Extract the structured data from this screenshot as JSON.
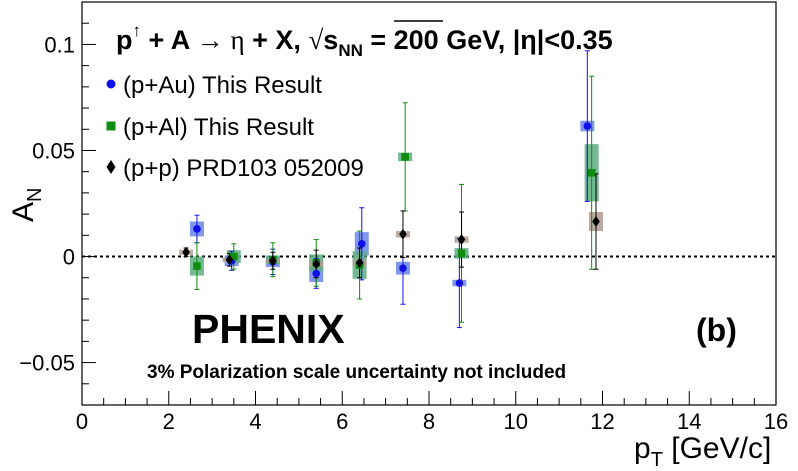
{
  "chart_data": {
    "type": "scatter",
    "title": {
      "proton": "p",
      "pol": "↑",
      "plus1": " + A ",
      "arrow": "→",
      "eta": " η",
      "plusx": " + X, ",
      "sqrt": "√",
      "s": "s",
      "nn": "NN",
      "energy": " = 200 GeV, |η|<0.35"
    },
    "xlabel": {
      "main": "p",
      "sub": "T",
      "unit": " [GeV/c]"
    },
    "ylabel": {
      "main": "A",
      "sub": "N"
    },
    "xlim": [
      0,
      16
    ],
    "ylim": [
      -0.07,
      0.12
    ],
    "x_ticks": [
      "0",
      "2",
      "4",
      "6",
      "8",
      "10",
      "12",
      "14",
      "16"
    ],
    "y_ticks": [
      "−0.05",
      "0",
      "0.05",
      "0.1"
    ],
    "y_tick_values": [
      -0.05,
      0,
      0.05,
      0.1
    ],
    "zero_line": "dotted",
    "experiment": "PHENIX",
    "panel": "(b)",
    "note": "3% Polarization scale uncertainty not included",
    "legend_position": "top-left",
    "series": [
      {
        "name": "(p+Au) This Result",
        "color": "#1010e8",
        "box_color": "#6b85e8",
        "marker": "circle",
        "points": [
          {
            "x": 2.65,
            "y": 0.013,
            "err": 0.0065,
            "sys": 0.0035
          },
          {
            "x": 3.45,
            "y": -0.002,
            "err": 0.0045,
            "sys": 0.0025
          },
          {
            "x": 4.4,
            "y": -0.0025,
            "err": 0.006,
            "sys": 0.0025
          },
          {
            "x": 5.4,
            "y": -0.008,
            "err": 0.007,
            "sys": 0.004
          },
          {
            "x": 6.45,
            "y": 0.006,
            "err": 0.017,
            "sys": 0.0055
          },
          {
            "x": 7.4,
            "y": -0.0055,
            "err": 0.017,
            "sys": 0.003
          },
          {
            "x": 8.7,
            "y": -0.0125,
            "err": 0.021,
            "sys": 0.0015
          },
          {
            "x": 11.65,
            "y": 0.0615,
            "err": 0.0355,
            "sys": 0.0025
          }
        ]
      },
      {
        "name": "(p+Al) This Result",
        "color": "#108c10",
        "box_color": "#5dae80",
        "marker": "square",
        "points": [
          {
            "x": 2.65,
            "y": -0.0045,
            "err": 0.011,
            "sys": 0.0045
          },
          {
            "x": 3.5,
            "y": 0.0,
            "err": 0.006,
            "sys": 0.003
          },
          {
            "x": 4.4,
            "y": -0.0015,
            "err": 0.008,
            "sys": 0.002
          },
          {
            "x": 5.4,
            "y": -0.003,
            "err": 0.011,
            "sys": 0.004
          },
          {
            "x": 6.4,
            "y": -0.004,
            "err": 0.016,
            "sys": 0.0065
          },
          {
            "x": 7.45,
            "y": 0.047,
            "err": 0.0255,
            "sys": 0.002
          },
          {
            "x": 8.75,
            "y": 0.0015,
            "err": 0.0325,
            "sys": 0.0025
          },
          {
            "x": 11.75,
            "y": 0.0395,
            "err": 0.0455,
            "sys": 0.0135
          }
        ]
      },
      {
        "name": "(p+p) PRD103 052009",
        "color": "#000000",
        "box_color": "#b09a90",
        "marker": "diamond",
        "points": [
          {
            "x": 2.4,
            "y": 0.002,
            "err": 0.002,
            "sys": 0.0012
          },
          {
            "x": 3.4,
            "y": -0.0015,
            "err": 0.003,
            "sys": 0.001
          },
          {
            "x": 4.4,
            "y": -0.002,
            "err": 0.004,
            "sys": 0.001
          },
          {
            "x": 5.4,
            "y": -0.0035,
            "err": 0.0065,
            "sys": 0.0015
          },
          {
            "x": 6.4,
            "y": -0.003,
            "err": 0.007,
            "sys": 0.0015
          },
          {
            "x": 7.4,
            "y": 0.0105,
            "err": 0.011,
            "sys": 0.0015
          },
          {
            "x": 8.75,
            "y": 0.008,
            "err": 0.013,
            "sys": 0.0015
          },
          {
            "x": 11.85,
            "y": 0.0165,
            "err": 0.0225,
            "sys": 0.0045
          }
        ]
      }
    ]
  }
}
